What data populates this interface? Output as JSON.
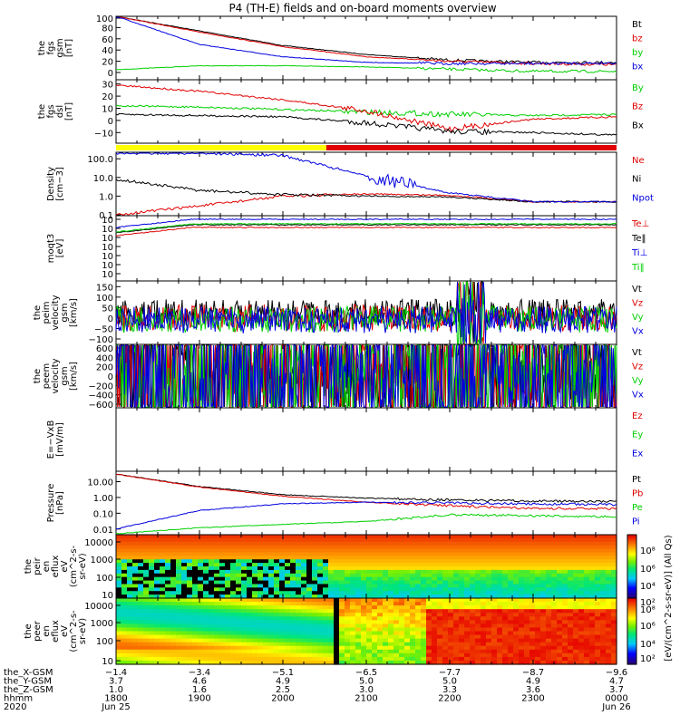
{
  "title": "P4 (TH-E) fields and on-board moments overview",
  "colors": {
    "black": "#000000",
    "red": "#e00000",
    "green": "#00d000",
    "blue": "#0000e0",
    "yellow": "#ffff00",
    "hot": "#ff0000"
  },
  "chart_data": [
    {
      "type": "line",
      "panel": "fgs-gsm",
      "ylabel": [
        "the",
        "fgs",
        "gsm",
        "[nT]"
      ],
      "ylim": [
        -10,
        100
      ],
      "yticks": [
        "100",
        "80",
        "60",
        "40",
        "20",
        "0"
      ],
      "series": [
        {
          "name": "Bt",
          "color": "black",
          "values": [
            100,
            74,
            48,
            32,
            22,
            18,
            18
          ]
        },
        {
          "name": "bz",
          "color": "red",
          "values": [
            100,
            72,
            46,
            28,
            20,
            16,
            14
          ]
        },
        {
          "name": "by",
          "color": "green",
          "values": [
            5,
            12,
            12,
            10,
            6,
            2,
            2
          ]
        },
        {
          "name": "bx",
          "color": "blue",
          "values": [
            100,
            50,
            28,
            18,
            16,
            16,
            17
          ]
        }
      ]
    },
    {
      "type": "line",
      "panel": "fgs-dsl",
      "ylabel": [
        "the",
        "fgs",
        "dsl",
        "[nT]"
      ],
      "ylim": [
        -15,
        32
      ],
      "yticks": [
        "30",
        "20",
        "10",
        "0",
        "−10"
      ],
      "series": [
        {
          "name": "By",
          "color": "green",
          "values": [
            12,
            11,
            9,
            7,
            5,
            4,
            5
          ]
        },
        {
          "name": "Bz",
          "color": "red",
          "values": [
            29,
            24,
            17,
            8,
            -7,
            1,
            3
          ]
        },
        {
          "name": "Bx",
          "color": "black",
          "values": [
            5,
            4,
            3,
            -2,
            -9,
            -10,
            -12
          ]
        }
      ]
    },
    {
      "type": "bar",
      "panel": "mode-bar",
      "segments": [
        {
          "start": 0,
          "end": 0.42,
          "color": "yellow"
        },
        {
          "start": 0.42,
          "end": 1,
          "color": "red"
        }
      ]
    },
    {
      "type": "line",
      "panel": "density",
      "ylabel": [
        "Density",
        "[cm−3]"
      ],
      "yscale": "log",
      "ylim": [
        0.1,
        200
      ],
      "yticks": [
        "100.0",
        "10.0",
        "1.0",
        "0.1"
      ],
      "series": [
        {
          "name": "Ne",
          "color": "red",
          "values": [
            0.1,
            0.3,
            1.0,
            1.3,
            1.1,
            0.5,
            0.5
          ]
        },
        {
          "name": "Ni",
          "color": "black",
          "values": [
            8,
            2,
            1.2,
            1.0,
            0.9,
            0.5,
            0.5
          ]
        },
        {
          "name": "Npot",
          "color": "blue",
          "values": [
            200,
            200,
            150,
            12,
            1.5,
            0.5,
            0.5
          ]
        }
      ]
    },
    {
      "type": "line",
      "panel": "temperature",
      "ylabel": [
        "moqt3",
        "[eV]"
      ],
      "yscale": "log",
      "yticks": [
        "10",
        "10",
        "10",
        "10",
        "10",
        "10",
        "10"
      ],
      "series": [
        {
          "name": "Te⊥",
          "color": "red"
        },
        {
          "name": "Te‖",
          "color": "black"
        },
        {
          "name": "Ti⊥",
          "color": "blue"
        },
        {
          "name": "Ti‖",
          "color": "green"
        }
      ]
    },
    {
      "type": "line",
      "panel": "peim-velocity",
      "ylabel": [
        "the",
        "peim",
        "velocity",
        "gsm",
        "[km/s]"
      ],
      "ylim": [
        -100,
        160
      ],
      "yticks": [
        "150",
        "100",
        "50",
        "0",
        "−50",
        "−100"
      ],
      "series": [
        {
          "name": "Vt",
          "color": "black"
        },
        {
          "name": "Vz",
          "color": "red"
        },
        {
          "name": "Vy",
          "color": "green"
        },
        {
          "name": "Vx",
          "color": "blue"
        }
      ]
    },
    {
      "type": "line",
      "panel": "peem-velocity",
      "ylabel": [
        "the",
        "peem",
        "velocity",
        "gsm",
        "[km/s]"
      ],
      "ylim": [
        -600,
        600
      ],
      "yticks": [
        "600",
        "400",
        "200",
        "0",
        "−200",
        "−400",
        "−600"
      ],
      "series": [
        {
          "name": "Vt",
          "color": "black"
        },
        {
          "name": "Vz",
          "color": "red"
        },
        {
          "name": "Vy",
          "color": "green"
        },
        {
          "name": "Vx",
          "color": "blue"
        }
      ]
    },
    {
      "type": "line",
      "panel": "efield",
      "ylabel": [
        "E=−VxB",
        "[mV/m]"
      ],
      "series": [
        {
          "name": "Ez",
          "color": "red"
        },
        {
          "name": "Ey",
          "color": "green"
        },
        {
          "name": "Ex",
          "color": "blue"
        }
      ]
    },
    {
      "type": "line",
      "panel": "pressure",
      "ylabel": [
        "Pressure",
        "[nPa]"
      ],
      "yscale": "log",
      "ylim": [
        0.005,
        40
      ],
      "yticks": [
        "10.00",
        "1.00",
        "0.10",
        "0.01"
      ],
      "series": [
        {
          "name": "Pt",
          "color": "black",
          "values": [
            30,
            5,
            1.5,
            0.9,
            0.7,
            0.6,
            0.55
          ]
        },
        {
          "name": "Pb",
          "color": "red",
          "values": [
            30,
            4.5,
            1.2,
            0.5,
            0.3,
            0.2,
            0.2
          ]
        },
        {
          "name": "Pe",
          "color": "green",
          "values": [
            0.005,
            0.012,
            0.02,
            0.03,
            0.08,
            0.07,
            0.06
          ]
        },
        {
          "name": "Pi",
          "color": "blue",
          "values": [
            0.01,
            0.15,
            0.4,
            0.5,
            0.45,
            0.4,
            0.35
          ]
        }
      ]
    },
    {
      "type": "heatmap",
      "panel": "peir-spectrogram",
      "ylabel": [
        "the",
        "peir",
        "en",
        "eflux",
        "eV",
        "(cm^2-s-",
        "sr-eV)"
      ],
      "yticks": [
        "10000",
        "1000",
        "100",
        "10"
      ]
    },
    {
      "type": "heatmap",
      "panel": "peer-spectrogram",
      "ylabel": [
        "the",
        "peer",
        "en",
        "eflux",
        "eV",
        "(cm^2-s-",
        "sr-eV)"
      ],
      "yticks": [
        "10000",
        "1000",
        "100",
        "10"
      ]
    }
  ],
  "colorbar": {
    "label": "[eV/(cm^2-s-sr-eV)] (All Qs)",
    "ticks": [
      "10⁸",
      "10⁶",
      "10⁴",
      "10²",
      "10⁸",
      "10⁶",
      "10⁴",
      "10²"
    ]
  },
  "xaxis": {
    "row_labels": [
      "the_X-GSM",
      "the_Y-GSM",
      "the_Z-GSM",
      "hhmm",
      "2020"
    ],
    "columns": [
      [
        "−1.4",
        "3.7",
        "1.0",
        "1800",
        "Jun 25"
      ],
      [
        "−3.4",
        "4.6",
        "1.6",
        "1900",
        ""
      ],
      [
        "−5.1",
        "4.9",
        "2.5",
        "2000",
        ""
      ],
      [
        "−6.5",
        "5.0",
        "3.0",
        "2100",
        ""
      ],
      [
        "−7.7",
        "5.0",
        "3.3",
        "2200",
        ""
      ],
      [
        "−8.7",
        "4.9",
        "3.6",
        "2300",
        ""
      ],
      [
        "−9.6",
        "4.7",
        "3.7",
        "0000",
        "Jun 26"
      ]
    ]
  }
}
